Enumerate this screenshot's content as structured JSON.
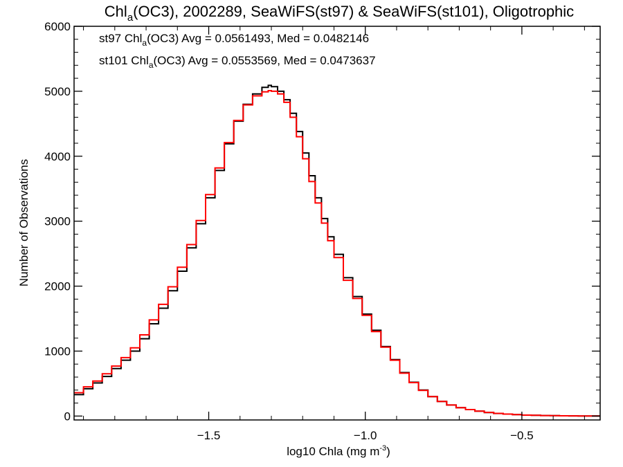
{
  "chart_data": {
    "type": "line",
    "title_parts": {
      "pre": "Chl",
      "sub": "a",
      "post": "(OC3), 2002289, SeaWiFS(st97) & SeaWiFS(st101), Oligotrophic"
    },
    "xlabel_parts": {
      "pre": "log10 Chla (mg m",
      "sup": "-3",
      "post": ")"
    },
    "ylabel": "Number of Observations",
    "xlim": [
      -1.93,
      -0.25
    ],
    "ylim": [
      -60,
      6000
    ],
    "x_ticks": [
      -1.5,
      -1.0,
      -0.5
    ],
    "x_tick_labels": [
      "−1.5",
      "−1.0",
      "−0.5"
    ],
    "y_ticks": [
      0,
      1000,
      2000,
      3000,
      4000,
      5000,
      6000
    ],
    "y_tick_labels": [
      "0",
      "1000",
      "2000",
      "3000",
      "4000",
      "5000",
      "6000"
    ],
    "annotations": [
      {
        "pre": "st97 Chl",
        "sub": "a",
        "post": "(OC3) Avg = 0.0561493, Med = 0.0482146",
        "color": "#000000"
      },
      {
        "pre": "st101 Chl",
        "sub": "a",
        "post": "(OC3) Avg = 0.0553569, Med = 0.0473637",
        "color": "#ff0000"
      }
    ],
    "series": [
      {
        "color": "#000000",
        "x": [
          -1.93,
          -1.9,
          -1.87,
          -1.84,
          -1.81,
          -1.78,
          -1.75,
          -1.72,
          -1.69,
          -1.66,
          -1.63,
          -1.6,
          -1.57,
          -1.54,
          -1.51,
          -1.48,
          -1.45,
          -1.42,
          -1.39,
          -1.36,
          -1.33,
          -1.31,
          -1.3,
          -1.28,
          -1.26,
          -1.24,
          -1.22,
          -1.2,
          -1.18,
          -1.16,
          -1.14,
          -1.12,
          -1.1,
          -1.07,
          -1.04,
          -1.01,
          -0.98,
          -0.95,
          -0.92,
          -0.89,
          -0.86,
          -0.83,
          -0.8,
          -0.77,
          -0.74,
          -0.71,
          -0.68,
          -0.65,
          -0.62,
          -0.59,
          -0.56,
          -0.53,
          -0.5,
          -0.47,
          -0.44,
          -0.41,
          -0.38,
          -0.35,
          -0.32,
          -0.29,
          -0.26
        ],
        "y": [
          330,
          420,
          510,
          610,
          730,
          860,
          1000,
          1190,
          1420,
          1660,
          1930,
          2230,
          2590,
          2960,
          3360,
          3780,
          4190,
          4540,
          4800,
          4960,
          5060,
          5090,
          5070,
          5000,
          4870,
          4660,
          4380,
          4050,
          3700,
          3360,
          3040,
          2760,
          2490,
          2130,
          1840,
          1570,
          1320,
          1070,
          870,
          670,
          520,
          400,
          300,
          225,
          170,
          130,
          100,
          75,
          55,
          40,
          30,
          22,
          15,
          11,
          8,
          6,
          4,
          3,
          2,
          1,
          1
        ]
      },
      {
        "color": "#ff0000",
        "x": [
          -1.93,
          -1.9,
          -1.87,
          -1.84,
          -1.81,
          -1.78,
          -1.75,
          -1.72,
          -1.69,
          -1.66,
          -1.63,
          -1.6,
          -1.57,
          -1.54,
          -1.51,
          -1.48,
          -1.45,
          -1.42,
          -1.39,
          -1.36,
          -1.33,
          -1.31,
          -1.3,
          -1.28,
          -1.26,
          -1.24,
          -1.22,
          -1.2,
          -1.18,
          -1.16,
          -1.14,
          -1.12,
          -1.1,
          -1.07,
          -1.04,
          -1.01,
          -0.98,
          -0.95,
          -0.92,
          -0.89,
          -0.86,
          -0.83,
          -0.8,
          -0.77,
          -0.74,
          -0.71,
          -0.68,
          -0.65,
          -0.62,
          -0.59,
          -0.56,
          -0.53,
          -0.5,
          -0.47,
          -0.44,
          -0.41,
          -0.38,
          -0.35,
          -0.32,
          -0.29,
          -0.26
        ],
        "y": [
          360,
          450,
          540,
          650,
          770,
          900,
          1050,
          1250,
          1480,
          1720,
          1990,
          2290,
          2640,
          3010,
          3410,
          3820,
          4210,
          4550,
          4790,
          4930,
          4990,
          5010,
          5000,
          4960,
          4830,
          4600,
          4300,
          3960,
          3610,
          3280,
          2970,
          2700,
          2440,
          2090,
          1810,
          1550,
          1300,
          1060,
          860,
          660,
          515,
          395,
          300,
          225,
          170,
          130,
          100,
          75,
          56,
          41,
          30,
          22,
          15,
          11,
          8,
          6,
          4,
          3,
          2,
          1,
          1
        ]
      }
    ]
  }
}
